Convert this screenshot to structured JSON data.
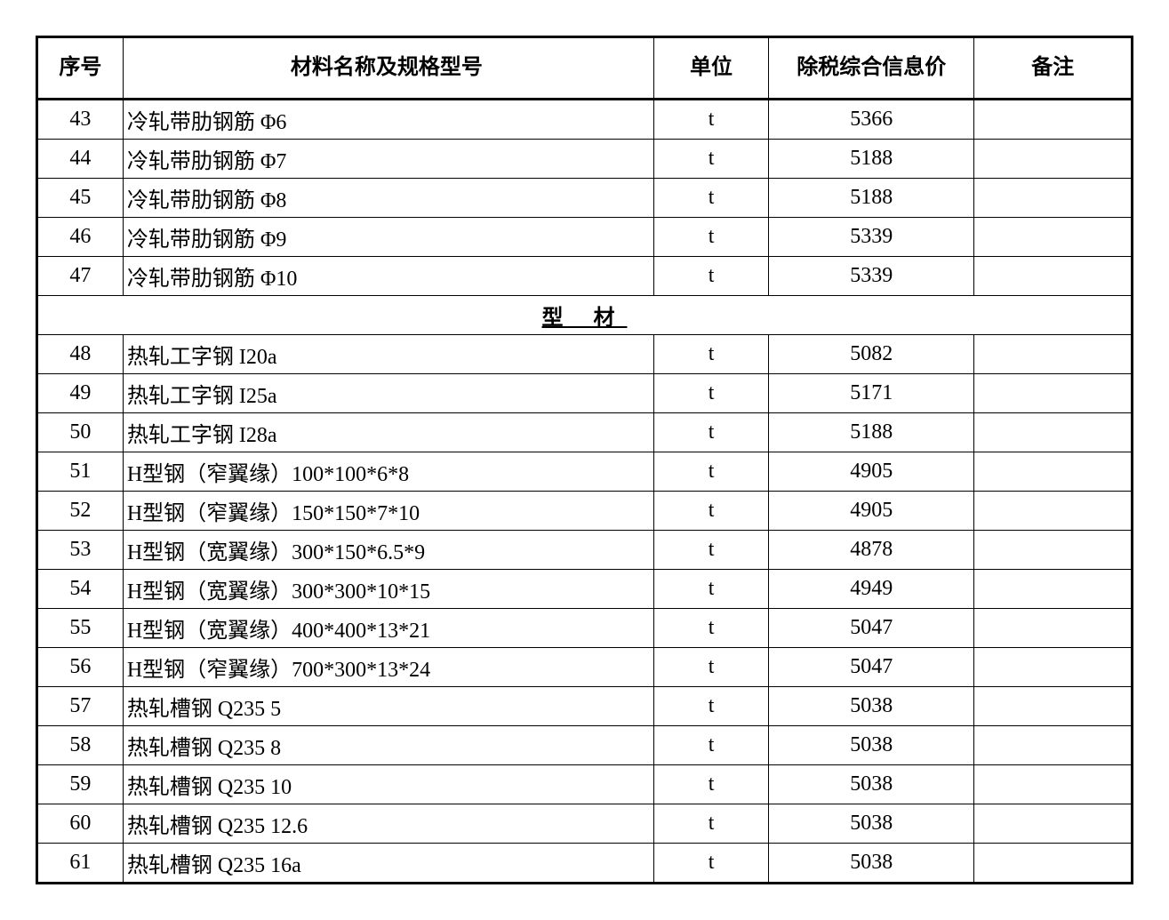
{
  "table": {
    "columns": {
      "seq": "序号",
      "name": "材料名称及规格型号",
      "unit": "单位",
      "price": "除税综合信息价",
      "note": "备注"
    },
    "rows": [
      {
        "type": "data",
        "seq": "43",
        "name": "冷轧带肋钢筋 Φ6",
        "unit": "t",
        "price": "5366",
        "note": ""
      },
      {
        "type": "data",
        "seq": "44",
        "name": "冷轧带肋钢筋 Φ7",
        "unit": "t",
        "price": "5188",
        "note": ""
      },
      {
        "type": "data",
        "seq": "45",
        "name": "冷轧带肋钢筋 Φ8",
        "unit": "t",
        "price": "5188",
        "note": ""
      },
      {
        "type": "data",
        "seq": "46",
        "name": "冷轧带肋钢筋 Φ9",
        "unit": "t",
        "price": "5339",
        "note": ""
      },
      {
        "type": "data",
        "seq": "47",
        "name": "冷轧带肋钢筋 Φ10",
        "unit": "t",
        "price": "5339",
        "note": ""
      },
      {
        "type": "section",
        "label": "型 材"
      },
      {
        "type": "data",
        "seq": "48",
        "name": "热轧工字钢 I20a",
        "unit": "t",
        "price": "5082",
        "note": ""
      },
      {
        "type": "data",
        "seq": "49",
        "name": "热轧工字钢 I25a",
        "unit": "t",
        "price": "5171",
        "note": ""
      },
      {
        "type": "data",
        "seq": "50",
        "name": "热轧工字钢 I28a",
        "unit": "t",
        "price": "5188",
        "note": ""
      },
      {
        "type": "data",
        "seq": "51",
        "name": "H型钢（窄翼缘）100*100*6*8",
        "unit": "t",
        "price": "4905",
        "note": ""
      },
      {
        "type": "data",
        "seq": "52",
        "name": "H型钢（窄翼缘）150*150*7*10",
        "unit": "t",
        "price": "4905",
        "note": ""
      },
      {
        "type": "data",
        "seq": "53",
        "name": "H型钢（宽翼缘）300*150*6.5*9",
        "unit": "t",
        "price": "4878",
        "note": ""
      },
      {
        "type": "data",
        "seq": "54",
        "name": "H型钢（宽翼缘）300*300*10*15",
        "unit": "t",
        "price": "4949",
        "note": ""
      },
      {
        "type": "data",
        "seq": "55",
        "name": "H型钢（宽翼缘）400*400*13*21",
        "unit": "t",
        "price": "5047",
        "note": ""
      },
      {
        "type": "data",
        "seq": "56",
        "name": "H型钢（窄翼缘）700*300*13*24",
        "unit": "t",
        "price": "5047",
        "note": ""
      },
      {
        "type": "data",
        "seq": "57",
        "name": "热轧槽钢 Q235 5",
        "unit": "t",
        "price": "5038",
        "note": ""
      },
      {
        "type": "data",
        "seq": "58",
        "name": "热轧槽钢 Q235 8",
        "unit": "t",
        "price": "5038",
        "note": ""
      },
      {
        "type": "data",
        "seq": "59",
        "name": "热轧槽钢 Q235 10",
        "unit": "t",
        "price": "5038",
        "note": ""
      },
      {
        "type": "data",
        "seq": "60",
        "name": "热轧槽钢 Q235 12.6",
        "unit": "t",
        "price": "5038",
        "note": ""
      },
      {
        "type": "data",
        "seq": "61",
        "name": "热轧槽钢 Q235 16a",
        "unit": "t",
        "price": "5038",
        "note": ""
      }
    ]
  },
  "styling": {
    "border_color": "#000000",
    "outer_border_width": 3,
    "inner_border_width": 1,
    "background_color": "#ffffff",
    "text_color": "#000000",
    "font_family": "SimSun",
    "header_fontsize": 24,
    "body_fontsize": 24,
    "column_widths": {
      "seq": 90,
      "name": 555,
      "unit": 120,
      "price": 215,
      "note": 165
    }
  }
}
